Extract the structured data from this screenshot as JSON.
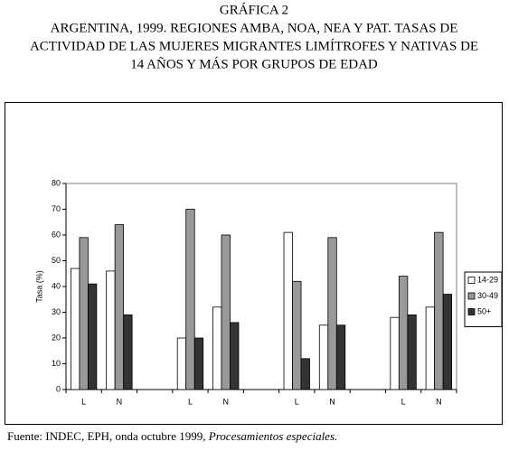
{
  "chart_data": {
    "type": "bar",
    "heading": "GRÁFICA 2",
    "title_lines": [
      "ARGENTINA, 1999. REGIONES AMBA, NOA, NEA Y PAT. TASAS DE",
      "ACTIVIDAD DE LAS MUJERES MIGRANTES LIMÍTROFES Y NATIVAS DE",
      "14 AÑOS Y MÁS POR GRUPOS DE EDAD"
    ],
    "y_label": "Tasa (%)",
    "categories": [
      "L",
      "N",
      null,
      "L",
      "N",
      null,
      "L",
      "N",
      null,
      "L",
      "N"
    ],
    "series": [
      {
        "name": "14-29",
        "color": "#ffffff",
        "values": [
          47,
          46,
          null,
          20,
          32,
          null,
          61,
          25,
          null,
          28,
          32
        ]
      },
      {
        "name": "30-49",
        "color": "#999999",
        "values": [
          59,
          64,
          null,
          70,
          60,
          null,
          42,
          59,
          null,
          44,
          61
        ]
      },
      {
        "name": "50+",
        "color": "#333333",
        "values": [
          41,
          29,
          null,
          20,
          26,
          null,
          12,
          25,
          null,
          29,
          37
        ]
      }
    ],
    "ylim": [
      0,
      80
    ],
    "yticks": [
      0,
      10,
      20,
      30,
      40,
      50,
      60,
      70,
      80
    ],
    "legend": "right",
    "source": {
      "text": "Fuente: INDEC, EPH, onda octubre 1999,",
      "emphasis": "Procesamientos especiales."
    }
  }
}
